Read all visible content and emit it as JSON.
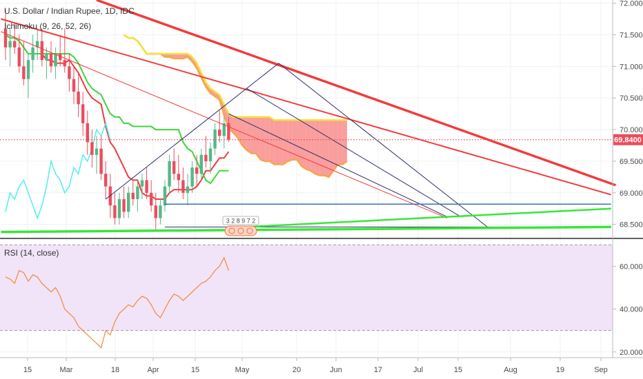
{
  "legend": {
    "symbol": "U.S. Dollar / Indian Rupee, 1D, IDC",
    "ichimoku": "Ichimoku (9, 26, 52, 26)",
    "rsi": "RSI (14, close)"
  },
  "colors": {
    "up": "#53b987",
    "down": "#eb4d5c",
    "tenkan": "#ef3b3b",
    "kijun": "#3ad63a",
    "chikou": "#4ff0ec",
    "span_a": "#f7a64a",
    "span_b": "#f4e23a",
    "cloud_bear": "#f98c8c",
    "cloud_bull": "#c9f3b1",
    "trend_red": "#f23b3b",
    "trend_green": "#37e737",
    "trend_navy": "#2b2f66",
    "trend_blue": "#3b6fb3",
    "rsi_line": "#f2883a",
    "rsi_band": "#f1e3f8"
  },
  "badge": "3 2 8 9 7 2",
  "chart_data": [
    {
      "type": "candlestick",
      "x_ticks": [
        "15",
        "Mar",
        "18",
        "Apr",
        "15",
        "May",
        "20",
        "Jun",
        "17",
        "Jul",
        "15",
        "Aug",
        "19",
        "Sep"
      ],
      "y_ticks": [
        "72.0000",
        "71.5000",
        "71.0000",
        "70.5000",
        "70.0000",
        "69.5000",
        "69.0000",
        "68.5000"
      ],
      "ylim": [
        68.3,
        72.05
      ],
      "current_price": "69.8400",
      "ohlc": [
        [
          71.6,
          71.9,
          71.1,
          71.3
        ],
        [
          71.3,
          71.6,
          71.0,
          71.4
        ],
        [
          71.4,
          71.7,
          71.2,
          71.3
        ],
        [
          71.3,
          71.5,
          70.9,
          71.0
        ],
        [
          71.0,
          71.4,
          70.7,
          70.8
        ],
        [
          70.8,
          71.2,
          70.5,
          71.1
        ],
        [
          71.1,
          71.5,
          70.9,
          71.3
        ],
        [
          71.3,
          71.6,
          71.1,
          71.4
        ],
        [
          71.4,
          71.6,
          71.0,
          71.1
        ],
        [
          71.1,
          71.3,
          70.8,
          71.2
        ],
        [
          71.2,
          71.4,
          70.9,
          71.0
        ],
        [
          71.0,
          71.3,
          70.8,
          71.2
        ],
        [
          71.2,
          71.5,
          71.0,
          71.1
        ],
        [
          71.1,
          71.6,
          70.9,
          71.0
        ],
        [
          71.0,
          71.2,
          70.6,
          70.8
        ],
        [
          70.8,
          71.0,
          70.4,
          70.6
        ],
        [
          70.6,
          70.9,
          70.2,
          70.4
        ],
        [
          70.4,
          70.6,
          69.9,
          70.1
        ],
        [
          70.1,
          70.3,
          69.6,
          69.8
        ],
        [
          69.8,
          70.0,
          69.4,
          69.6
        ],
        [
          69.6,
          69.9,
          69.3,
          69.7
        ],
        [
          69.7,
          69.9,
          69.2,
          69.3
        ],
        [
          69.3,
          69.5,
          68.9,
          69.1
        ],
        [
          69.1,
          69.3,
          68.6,
          68.8
        ],
        [
          68.8,
          69.0,
          68.5,
          68.6
        ],
        [
          68.6,
          69.0,
          68.5,
          68.9
        ],
        [
          68.9,
          69.1,
          68.6,
          68.7
        ],
        [
          68.7,
          69.1,
          68.6,
          69.0
        ],
        [
          69.0,
          69.2,
          68.8,
          68.9
        ],
        [
          68.9,
          69.2,
          68.7,
          69.1
        ],
        [
          69.1,
          69.3,
          68.9,
          69.2
        ],
        [
          69.2,
          69.4,
          68.9,
          69.0
        ],
        [
          69.0,
          69.2,
          68.7,
          68.8
        ],
        [
          68.8,
          69.0,
          68.4,
          68.6
        ],
        [
          68.6,
          68.9,
          68.5,
          68.8
        ],
        [
          68.8,
          69.2,
          68.7,
          69.1
        ],
        [
          69.1,
          69.6,
          69.0,
          69.5
        ],
        [
          69.5,
          69.7,
          69.2,
          69.3
        ],
        [
          69.3,
          69.6,
          69.0,
          69.2
        ],
        [
          69.2,
          69.4,
          68.9,
          69.0
        ],
        [
          69.0,
          69.3,
          68.8,
          69.1
        ],
        [
          69.1,
          69.5,
          69.0,
          69.4
        ],
        [
          69.4,
          69.6,
          69.1,
          69.3
        ],
        [
          69.3,
          69.7,
          69.2,
          69.6
        ],
        [
          69.6,
          69.9,
          69.4,
          69.5
        ],
        [
          69.5,
          69.8,
          69.3,
          69.7
        ],
        [
          69.7,
          70.1,
          69.6,
          70.0
        ],
        [
          70.0,
          70.3,
          69.8,
          69.9
        ],
        [
          69.9,
          70.2,
          69.7,
          70.1
        ],
        [
          70.1,
          70.2,
          69.8,
          69.84
        ]
      ]
    },
    {
      "type": "line",
      "name": "RSI",
      "y_ticks": [
        "60.0000",
        "40.0000",
        "20.0000"
      ],
      "ylim": [
        18,
        72
      ],
      "bands": [
        70,
        30
      ],
      "values": [
        55,
        54,
        52,
        58,
        57,
        53,
        56,
        55,
        52,
        50,
        48,
        50,
        46,
        40,
        38,
        36,
        32,
        30,
        28,
        26,
        24,
        22,
        30,
        28,
        34,
        38,
        40,
        42,
        41,
        44,
        46,
        45,
        42,
        38,
        36,
        40,
        44,
        47,
        46,
        44,
        46,
        48,
        50,
        52,
        53,
        55,
        58,
        60,
        64,
        58
      ]
    }
  ]
}
